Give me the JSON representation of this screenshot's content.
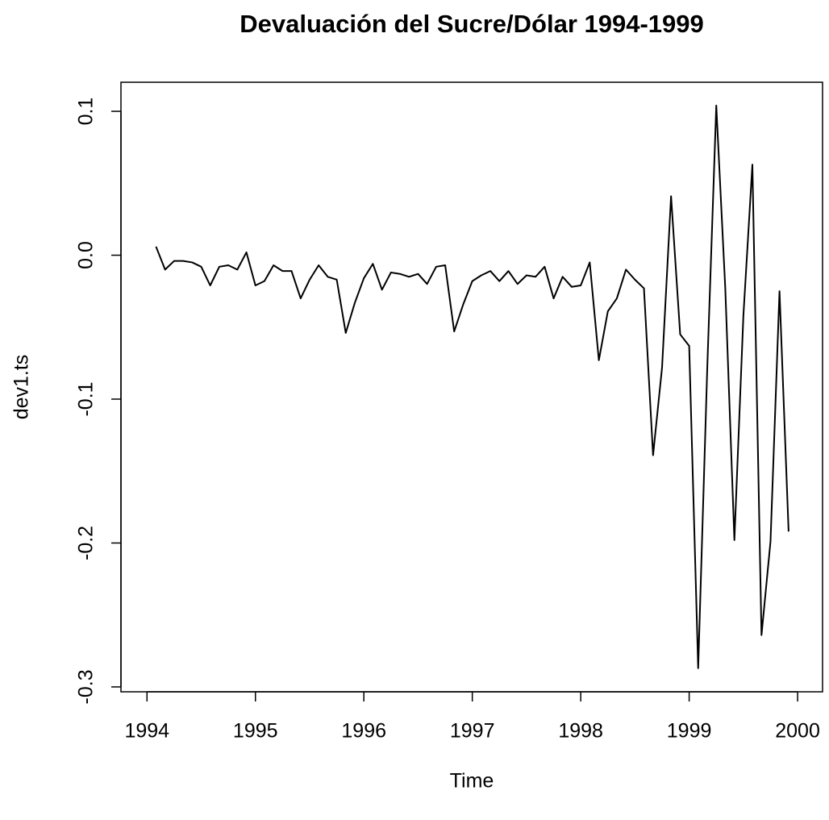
{
  "chart_data": {
    "type": "line",
    "title": "Devaluación del Sucre/Dólar 1994-1999",
    "x_label": "Time",
    "y_label": "dev1.ts",
    "x": [
      1994.083,
      1994.167,
      1994.25,
      1994.333,
      1994.417,
      1994.5,
      1994.583,
      1994.667,
      1994.75,
      1994.833,
      1994.917,
      1995,
      1995.083,
      1995.167,
      1995.25,
      1995.333,
      1995.417,
      1995.5,
      1995.583,
      1995.667,
      1995.75,
      1995.833,
      1995.917,
      1996,
      1996.083,
      1996.167,
      1996.25,
      1996.333,
      1996.417,
      1996.5,
      1996.583,
      1996.667,
      1996.75,
      1996.833,
      1996.917,
      1997,
      1997.083,
      1997.167,
      1997.25,
      1997.333,
      1997.417,
      1997.5,
      1997.583,
      1997.667,
      1997.75,
      1997.833,
      1997.917,
      1998,
      1998.083,
      1998.167,
      1998.25,
      1998.333,
      1998.417,
      1998.5,
      1998.583,
      1998.667,
      1998.75,
      1998.833,
      1998.917,
      1999,
      1999.083,
      1999.167,
      1999.25,
      1999.333,
      1999.417,
      1999.5,
      1999.583,
      1999.667,
      1999.75,
      1999.833,
      1999.917
    ],
    "series": [
      {
        "color": "#000000",
        "values": [
          0.006,
          -0.01,
          -0.004,
          -0.004,
          -0.005,
          -0.008,
          -0.021,
          -0.008,
          -0.007,
          -0.01,
          0.002,
          -0.021,
          -0.018,
          -0.007,
          -0.011,
          -0.011,
          -0.03,
          -0.017,
          -0.007,
          -0.015,
          -0.017,
          -0.054,
          -0.033,
          -0.016,
          -0.006,
          -0.024,
          -0.012,
          -0.013,
          -0.015,
          -0.013,
          -0.02,
          -0.008,
          -0.007,
          -0.053,
          -0.034,
          -0.018,
          -0.014,
          -0.011,
          -0.018,
          -0.011,
          -0.02,
          -0.014,
          -0.015,
          -0.008,
          -0.03,
          -0.015,
          -0.022,
          -0.021,
          -0.005,
          -0.073,
          -0.039,
          -0.03,
          -0.01,
          -0.017,
          -0.023,
          -0.139,
          -0.078,
          0.041,
          -0.055,
          -0.063,
          -0.287,
          -0.078,
          0.104,
          -0.023,
          -0.198,
          -0.042,
          0.063,
          -0.264,
          -0.199,
          -0.025,
          -0.192
        ]
      }
    ],
    "xlim": [
      1993.76,
      2000.23
    ],
    "ylim": [
      -0.3034,
      0.1202
    ],
    "xticks": [
      1994,
      1995,
      1996,
      1997,
      1998,
      1999,
      2000
    ],
    "yticks": [
      -0.3,
      -0.2,
      -0.1,
      {
        "value": 0,
        "label": "0.0"
      },
      0.1
    ]
  }
}
